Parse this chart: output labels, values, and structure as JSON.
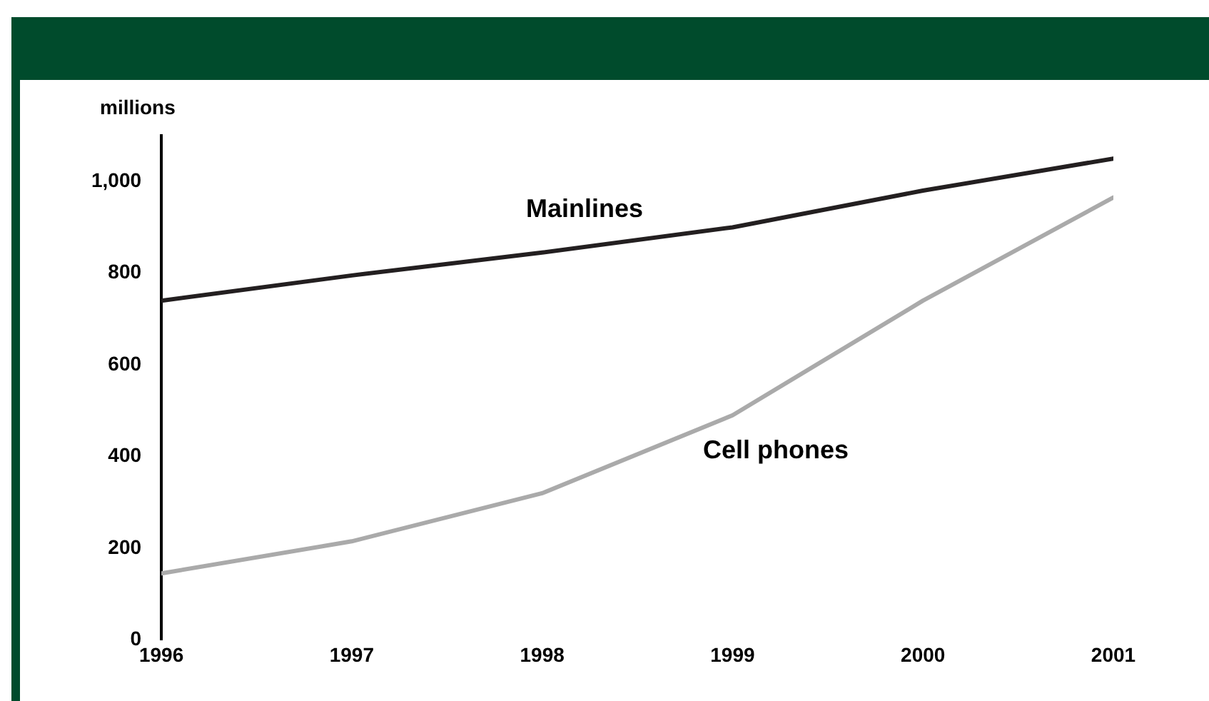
{
  "chart_data": {
    "type": "line",
    "ylabel": "millions",
    "x": [
      1996,
      1997,
      1998,
      1999,
      2000,
      2001
    ],
    "xlim": [
      1996,
      2001
    ],
    "xticks": [
      1996,
      1997,
      1998,
      1999,
      2000,
      2001
    ],
    "ylim": [
      0,
      1100
    ],
    "yticks": [
      0,
      200,
      400,
      600,
      800,
      {
        "value": 1000,
        "label": "1,000"
      }
    ],
    "series": [
      {
        "name": "Mainlines",
        "color": "#231f20",
        "values": [
          740,
          795,
          845,
          900,
          980,
          1050
        ]
      },
      {
        "name": "Cell phones",
        "color": "#aaaaaa",
        "values": [
          145,
          215,
          320,
          490,
          740,
          965
        ]
      }
    ],
    "grid": false,
    "legend": false,
    "marker": "none",
    "line_style": "solid"
  }
}
